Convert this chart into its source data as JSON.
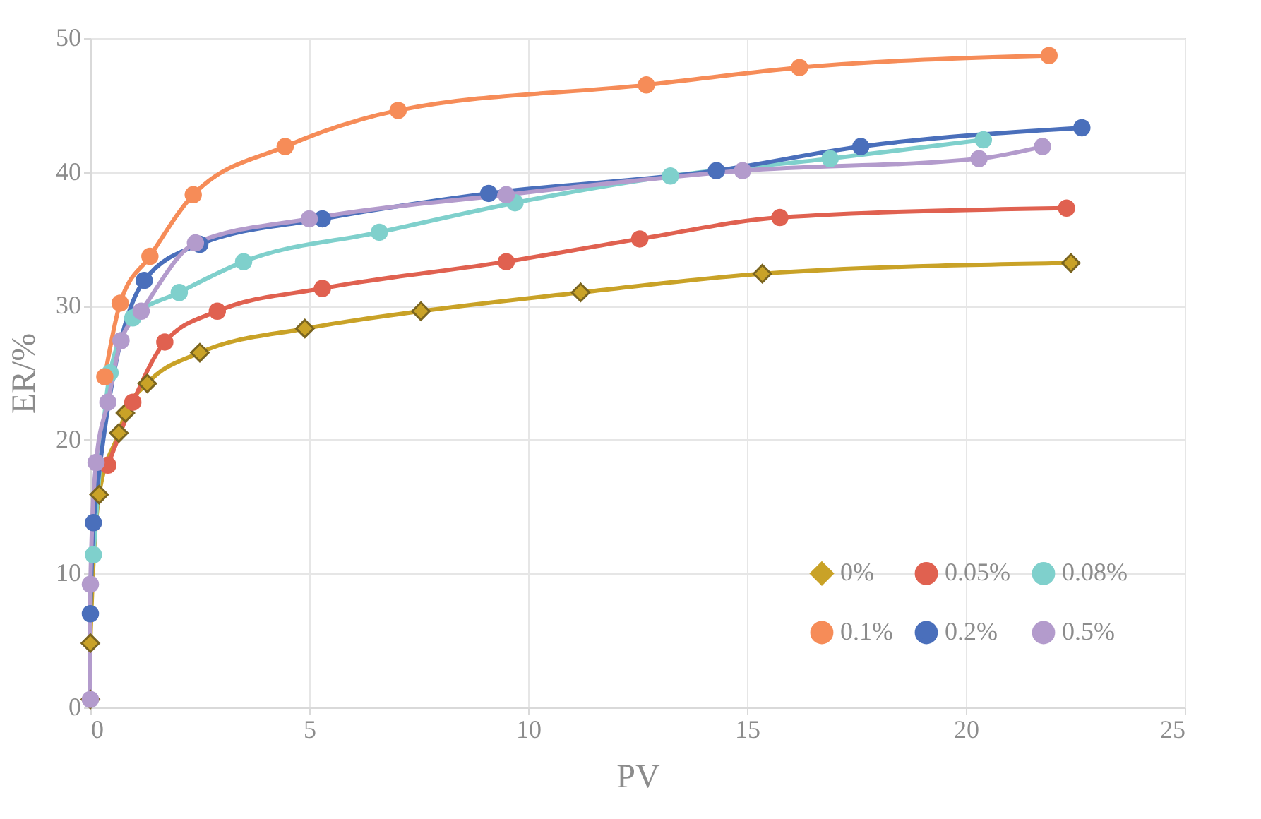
{
  "chart_data": {
    "type": "line",
    "xlabel": "PV",
    "ylabel": "ER/%",
    "xlim": [
      0,
      25
    ],
    "ylim": [
      0,
      50
    ],
    "xticks": [
      0,
      5,
      10,
      15,
      20,
      25
    ],
    "yticks": [
      0,
      10,
      20,
      30,
      40,
      50
    ],
    "grid": true,
    "legend": "bottom right",
    "marker": "circle",
    "line_style": "solid",
    "series": [
      {
        "name": "0%",
        "color": "#c9a227",
        "marker": "diamond",
        "x": [
          0,
          0,
          0.2,
          0.65,
          0.8,
          1.3,
          2.5,
          4.9,
          7.55,
          11.2,
          15.35,
          22.4
        ],
        "values": [
          0.6,
          4.8,
          15.9,
          20.5,
          22,
          24.2,
          26.5,
          28.3,
          29.6,
          31,
          32.4,
          33.2
        ]
      },
      {
        "name": "0.05%",
        "color": "#e06150",
        "x": [
          0.4,
          0.97,
          1.7,
          2.9,
          5.3,
          9.5,
          12.55,
          15.75,
          22.3
        ],
        "values": [
          18.1,
          22.8,
          27.3,
          29.6,
          31.3,
          33.3,
          35.0,
          36.6,
          37.3
        ]
      },
      {
        "name": "0.08%",
        "color": "#7fd0cc",
        "x": [
          0.07,
          0.45,
          0.97,
          2.03,
          3.5,
          6.6,
          9.7,
          13.25,
          16.9,
          20.4
        ],
        "values": [
          11.4,
          25.0,
          29.1,
          31.0,
          33.3,
          35.5,
          37.7,
          39.7,
          41.0,
          42.4
        ]
      },
      {
        "name": "0.1%",
        "color": "#f68c58",
        "x": [
          0.33,
          0.68,
          1.36,
          2.35,
          4.45,
          7.03,
          12.7,
          16.2,
          21.9
        ],
        "values": [
          24.7,
          30.2,
          33.7,
          38.3,
          41.9,
          44.6,
          46.5,
          47.8,
          48.7
        ]
      },
      {
        "name": "0.2%",
        "color": "#4a6fbb",
        "x": [
          0,
          0.07,
          1.23,
          2.5,
          5.3,
          9.1,
          14.3,
          17.6,
          22.65
        ],
        "values": [
          7.0,
          13.8,
          31.9,
          34.6,
          36.5,
          38.4,
          40.1,
          41.9,
          43.3
        ]
      },
      {
        "name": "0.5%",
        "color": "#b39bcc",
        "x": [
          0,
          0,
          0.13,
          0.4,
          0.7,
          1.16,
          2.4,
          5.0,
          9.5,
          14.9,
          20.3,
          21.75
        ],
        "values": [
          0.6,
          9.2,
          18.3,
          22.8,
          27.4,
          29.6,
          34.7,
          36.5,
          38.3,
          40.1,
          41.0,
          41.9
        ]
      }
    ]
  }
}
